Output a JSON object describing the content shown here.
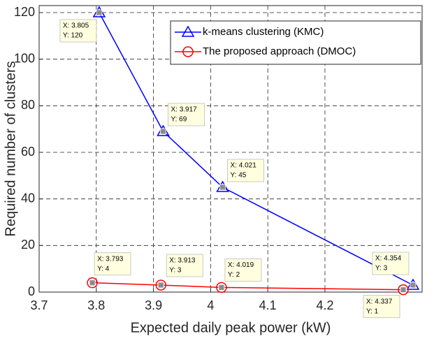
{
  "chart_data": {
    "type": "line",
    "xlabel": "Expected daily peak power (kW)",
    "ylabel": "Required number of clusters",
    "xlim": [
      3.7,
      4.37
    ],
    "ylim": [
      0,
      123
    ],
    "xticks": [
      3.7,
      3.8,
      3.9,
      4,
      4.1,
      4.2
    ],
    "yticks": [
      0,
      20,
      40,
      60,
      80,
      100,
      120
    ],
    "grid": true,
    "legend": "upper right",
    "series": [
      {
        "name": "k-means clustering (KMC)",
        "color": "#0000ff",
        "marker": "triangle",
        "x": [
          3.805,
          3.917,
          4.021,
          4.354
        ],
        "values": [
          120,
          69,
          45,
          3
        ],
        "x_labels": [
          "X: 3.805",
          "X: 3.917",
          "X: 4.021",
          "X: 4.354"
        ],
        "value_labels": [
          "Y: 120",
          "Y: 69",
          "Y: 45",
          "Y: 3"
        ]
      },
      {
        "name": "The proposed approach (DMOC)",
        "color": "#ff0000",
        "marker": "circle",
        "x": [
          3.793,
          3.913,
          4.019,
          4.337
        ],
        "values": [
          4,
          3,
          2,
          1
        ],
        "x_labels": [
          "X: 3.793",
          "X: 3.913",
          "X: 4.019",
          "X: 4.337"
        ],
        "value_labels": [
          "Y: 4",
          "Y: 3",
          "Y: 2",
          "Y: 1"
        ]
      }
    ]
  }
}
